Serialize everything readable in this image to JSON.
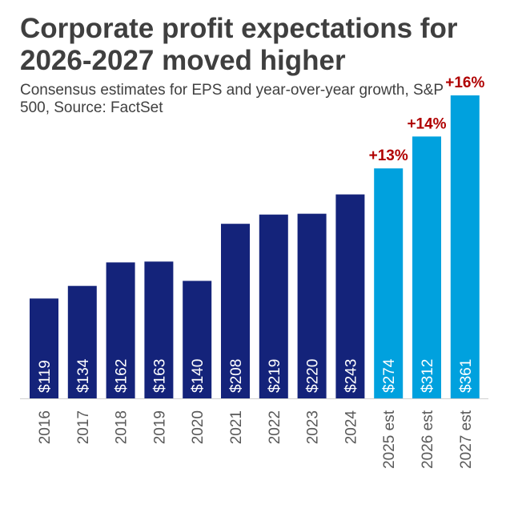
{
  "chart_data": {
    "type": "bar",
    "title": "Corporate profit expectations for 2026-2027 moved higher",
    "subtitle": "Consensus estimates for EPS and year-over-year growth, S&P 500, Source: FactSet",
    "categories": [
      "2016",
      "2017",
      "2018",
      "2019",
      "2020",
      "2021",
      "2022",
      "2023",
      "2024",
      "2025 est",
      "2026 est",
      "2027 est"
    ],
    "values": [
      119,
      134,
      162,
      163,
      140,
      208,
      219,
      220,
      243,
      274,
      312,
      361
    ],
    "data_labels": [
      "$119",
      "$134",
      "$162",
      "$163",
      "$140",
      "$208",
      "$219",
      "$220",
      "$243",
      "$274",
      "$312",
      "$361"
    ],
    "growth_labels": [
      "",
      "",
      "",
      "",
      "",
      "",
      "",
      "",
      "",
      "+13%",
      "+14%",
      "+16%"
    ],
    "estimated": [
      false,
      false,
      false,
      false,
      false,
      false,
      false,
      false,
      false,
      true,
      true,
      true
    ],
    "ylim": [
      0,
      361
    ],
    "grid": false,
    "colors": {
      "actual": "#14237a",
      "estimate": "#00a1de",
      "growth": "#b00000",
      "axis_text": "#595959"
    }
  }
}
